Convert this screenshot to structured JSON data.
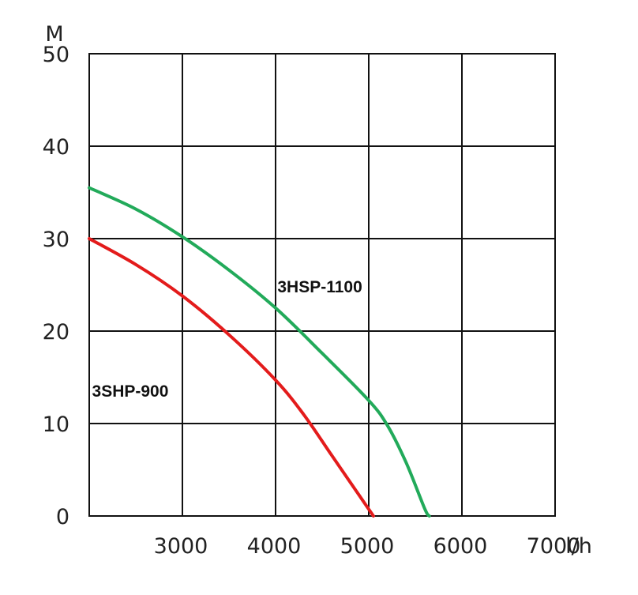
{
  "chart_data": {
    "type": "line",
    "title": "",
    "xlabel": "l/h",
    "ylabel": "M",
    "xlim": [
      2000,
      7000
    ],
    "ylim": [
      0,
      50
    ],
    "grid": true,
    "x_ticks": [
      {
        "value": 3000,
        "label": "3000"
      },
      {
        "value": 4000,
        "label": "4000"
      },
      {
        "value": 5000,
        "label": "5000"
      },
      {
        "value": 6000,
        "label": "6000"
      },
      {
        "value": 7000,
        "label": "7000"
      }
    ],
    "y_ticks": [
      {
        "value": 0,
        "label": "0"
      },
      {
        "value": 10,
        "label": "10"
      },
      {
        "value": 20,
        "label": "20"
      },
      {
        "value": 30,
        "label": "30"
      },
      {
        "value": 40,
        "label": "40"
      },
      {
        "value": 50,
        "label": "50"
      }
    ],
    "series": [
      {
        "name": "3HSP-1100",
        "color": "#22aa5a",
        "label_at": [
          4020,
          24.2
        ],
        "points": [
          [
            2000,
            35.5
          ],
          [
            2500,
            33.2
          ],
          [
            3000,
            30.2
          ],
          [
            3500,
            26.6
          ],
          [
            4000,
            22.5
          ],
          [
            4500,
            17.6
          ],
          [
            5000,
            12.5
          ],
          [
            5200,
            9.8
          ],
          [
            5400,
            5.8
          ],
          [
            5600,
            0.8
          ],
          [
            5650,
            0
          ]
        ]
      },
      {
        "name": "3SHP-900",
        "color": "#e31b1b",
        "label_at": [
          2030,
          12.9
        ],
        "points": [
          [
            2000,
            30.0
          ],
          [
            2500,
            27.2
          ],
          [
            3000,
            23.8
          ],
          [
            3500,
            19.6
          ],
          [
            4000,
            14.7
          ],
          [
            4300,
            11.0
          ],
          [
            4600,
            6.6
          ],
          [
            4900,
            2.2
          ],
          [
            5050,
            0
          ]
        ]
      }
    ]
  }
}
